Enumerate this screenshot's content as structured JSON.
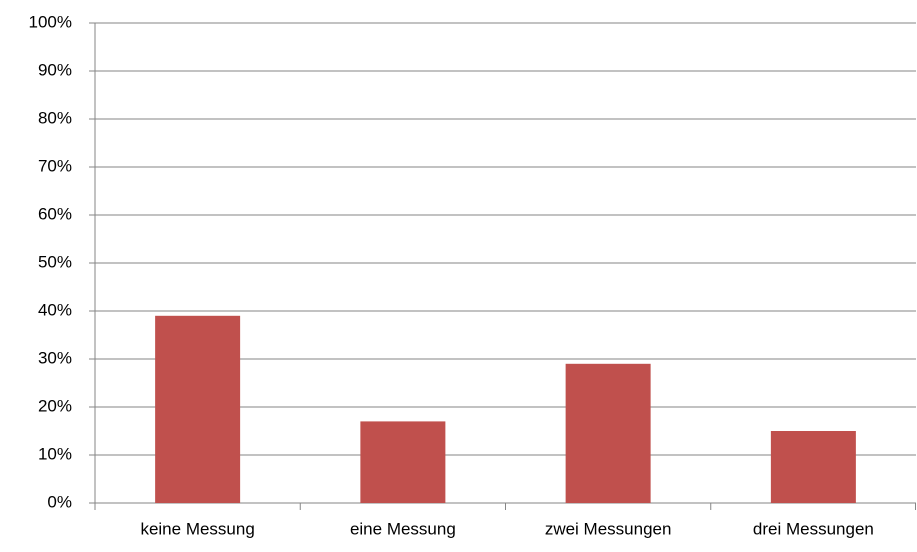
{
  "chart_data": {
    "type": "bar",
    "categories": [
      "keine Messung",
      "eine Messung",
      "zwei Messungen",
      "drei Messungen"
    ],
    "values": [
      39,
      17,
      29,
      15
    ],
    "color": "#c0504d",
    "ylim": [
      0,
      100
    ],
    "yticks": [
      {
        "value": 0,
        "label": "0%"
      },
      {
        "value": 10,
        "label": "10%"
      },
      {
        "value": 20,
        "label": "20%"
      },
      {
        "value": 30,
        "label": "30%"
      },
      {
        "value": 40,
        "label": "40%"
      },
      {
        "value": 50,
        "label": "50%"
      },
      {
        "value": 60,
        "label": "60%"
      },
      {
        "value": 70,
        "label": "70%"
      },
      {
        "value": 80,
        "label": "80%"
      },
      {
        "value": 90,
        "label": "90%"
      },
      {
        "value": 100,
        "label": "100%"
      }
    ],
    "grid": true
  }
}
